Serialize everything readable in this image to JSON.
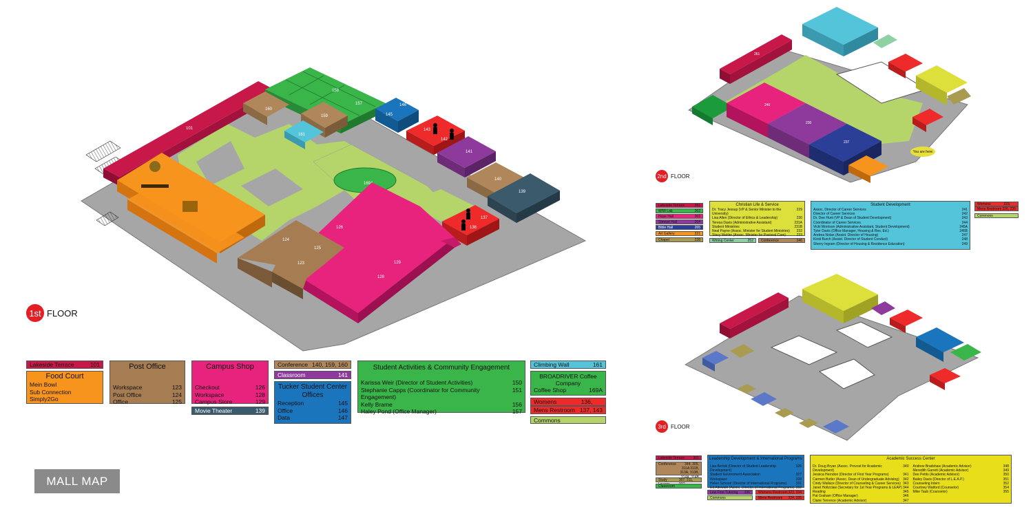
{
  "floors": {
    "first": {
      "num": "1st",
      "label": "FLOOR"
    },
    "second": {
      "num": "2nd",
      "label": "FLOOR"
    },
    "third": {
      "num": "3rd",
      "label": "FLOOR"
    }
  },
  "mall_map_label": "MALL MAP",
  "you_are_here": "You are here",
  "colors": {
    "gray_floor": "#a6a6a6",
    "green_grass": "#b5d56b",
    "crimson": "#c8184a",
    "orange": "#f7941d",
    "tan": "#b0875a",
    "magenta": "#e8237d",
    "green": "#39b54a",
    "teal_dark": "#3b5a6b",
    "purple": "#8e3a9c",
    "blue": "#1b75bc",
    "cyan": "#54c4db",
    "red": "#ee2a2a",
    "yellow": "#dddf3a",
    "navy": "#2b3f99",
    "khaki": "#a99b52",
    "periwinkle": "#5b79c8"
  },
  "rooms_first": {
    "r101": "101",
    "r160": "160",
    "r158": "158",
    "r151": "151",
    "r150": "150",
    "r157": "157",
    "r145": "145",
    "r146": "146",
    "r159": "159",
    "r161": "161",
    "r143": "143",
    "r142": "142",
    "r141": "141",
    "r140": "140",
    "r139": "139",
    "r169a": "169A",
    "r137": "137",
    "r136": "136",
    "r126": "126",
    "r124": "124",
    "r125": "125",
    "r123": "123",
    "r129": "129",
    "r128": "128"
  },
  "rooms_second": {
    "r261": "261",
    "r240": "240",
    "r230": "230",
    "r237": "237"
  },
  "legend1": {
    "lakeside": {
      "name": "Lakeside Terrace",
      "num": "101"
    },
    "foodcourt": {
      "title": "Food Court",
      "items": [
        "Mein Bowl",
        "Sub Connection",
        "Simply2Go"
      ]
    },
    "postoffice": {
      "title": "Post Office",
      "rows": [
        [
          "Workspace",
          "123"
        ],
        [
          "Post Office",
          "124"
        ],
        [
          "Office",
          "125"
        ]
      ]
    },
    "campusshop": {
      "title": "Campus Shop",
      "rows": [
        [
          "Checkout",
          "126"
        ],
        [
          "Workspace",
          "128"
        ],
        [
          "Campus Store",
          "129"
        ]
      ]
    },
    "movie": {
      "name": "Movie Theater",
      "num": "139"
    },
    "conference": {
      "name": "Conference",
      "num": "140, 159, 160"
    },
    "classroom": {
      "name": "Classroom",
      "num": "141"
    },
    "tucker": {
      "title": "Tucker Student Center Offices",
      "rows": [
        [
          "Reception",
          "145"
        ],
        [
          "Office",
          "146"
        ],
        [
          "Data",
          "147"
        ]
      ]
    },
    "sace": {
      "title": "Student Activities & Community Engagement",
      "rows": [
        [
          "Karissa Weir (Director of Student Activities)",
          "150"
        ],
        [
          "Stephanie Capps (Coordinator for Community Engagement)",
          "151"
        ],
        [
          "Kelly Brame",
          "156"
        ],
        [
          "Haley Pond (Office Manager)",
          "157"
        ]
      ]
    },
    "climbing": {
      "name": "Climbing Wall",
      "num": "161"
    },
    "coffee": {
      "title": "BROADRIVER Coffee Company",
      "name": "Coffee Shop",
      "num": "169A"
    },
    "womens": {
      "name": "Womens Restroom",
      "num": "136, 142"
    },
    "mens": {
      "name": "Mens Restroom",
      "num": "137, 143"
    },
    "commons": {
      "name": "Commons"
    }
  },
  "legend2": {
    "left": [
      [
        "Lakeside Terrace",
        "261"
      ],
      [
        "W/W Lab",
        "262"
      ],
      [
        "Hope Hall",
        "263"
      ],
      [
        "Stewart Hall",
        "264"
      ],
      [
        "Bible Hall",
        "265"
      ],
      [
        "Art Gallery",
        "221"
      ],
      [
        "Chapel",
        "228"
      ]
    ],
    "christian": {
      "title": "Christian Life & Service",
      "rows": [
        [
          "Dr. Tracy Jessup (VP & Senior Minister to the University)",
          "229"
        ],
        [
          "Lisa Allen (Director of Ethics & Leadership)",
          "230"
        ],
        [
          "Teresa Davis (Administrative Assistant)",
          "231A"
        ],
        [
          "Student Ministries",
          "231B"
        ],
        [
          "Neal Payne (Assoc. Minister for Student Ministries)",
          "232"
        ],
        [
          "Stacy Mahler (Assoc. Minister for Pastoral Care)",
          "233"
        ]
      ]
    },
    "writing": {
      "name": "Writing Center",
      "num": "252"
    },
    "conference": {
      "name": "Conference",
      "num": "246"
    },
    "studentdev": {
      "title": "Student Development",
      "rows": [
        [
          "Assoc. Director of Career Services",
          "241"
        ],
        [
          "Director of Career Services",
          "242"
        ],
        [
          "Dr. Dee Hunt (VP & Dean of Student Development)",
          "243"
        ],
        [
          "Coordinator of Career Services",
          "244"
        ],
        [
          "Vicki Morrison (Administrative Assistant, Student Development)",
          "245A"
        ],
        [
          "Tyler Davis (Office Manager, Housing & Res. Ed.)",
          "245B"
        ],
        [
          "Andrea Nolan (Assist. Director of Housing)",
          "247"
        ],
        [
          "Kirsti Burch (Assist. Director of Student Conduct)",
          "248"
        ],
        [
          "Sherry Ingram (Director of Housing & Residence Education)",
          "249"
        ]
      ]
    },
    "womens": {
      "name": "Womens Restroom",
      "num": "223, 234"
    },
    "mens": {
      "name": "Mens Restroom",
      "num": "226, 235"
    },
    "commons": {
      "name": "Commons"
    }
  },
  "legend3": {
    "lakeside": {
      "name": "Lakeside Terrace",
      "num": "301"
    },
    "conference": {
      "name": "Conference",
      "num": "344, 305, 311A 311B, 313A, 313B, 314A, 314B"
    },
    "study": {
      "name": "Study Lounge",
      "num": "307, 311, 337"
    },
    "classroom": {
      "name": "Classroom"
    },
    "leadership": {
      "title": "Leadership Development & International Programs",
      "rows": [
        [
          "Lisa Bertok (Director of Student Leadership Development)",
          "326"
        ],
        [
          "Student Government Association",
          "327"
        ],
        [
          "Workspace",
          "328"
        ],
        [
          "Helen Schoorl (Director of International Programs)",
          "331"
        ],
        [
          "Ed Adewale (Assoc. Director of International Programs)",
          "332"
        ]
      ]
    },
    "lowfree": {
      "name": "Low Free Tutoring",
      "num": "336"
    },
    "commons": {
      "name": "Commons"
    },
    "womens": {
      "name": "Womens Restroom",
      "num": "323, 334"
    },
    "mens": {
      "name": "Mens Restroom",
      "num": "324, 335"
    },
    "asc": {
      "title": "Academic Success Center",
      "left": [
        [
          "Dr. Doug Bryan (Assoc. Provost for Academic Development)",
          "340"
        ],
        [
          "Jessica Herndon (Director of First Year Programs)",
          "341"
        ],
        [
          "Carmen Butler (Assoc. Dean of Undergraduate Advising)",
          "342"
        ],
        [
          "Cindy Wallace (Director of Counseling & Career Services)",
          "343"
        ],
        [
          "Janet Holtzclaw (Secretary for 1st Year Programs & LEAP)",
          "344"
        ],
        [
          "Reading",
          "345"
        ],
        [
          "Pat Graham (Office Manager)",
          "346"
        ],
        [
          "Claire Terrence (Academic Advisor)",
          "347"
        ]
      ],
      "right": [
        [
          "Andrew Bradshaw (Academic Advisor)",
          "348"
        ],
        [
          "Meredith Garrett (Academic Advisor)",
          "349"
        ],
        [
          "Dee Pettis (Academic Advisor)",
          "350"
        ],
        [
          "Bailey Davis (Director of L.E.A.P.)",
          "351"
        ],
        [
          "Counseling Intern",
          "352"
        ],
        [
          "Courtney Watford (Counselor)",
          "354"
        ],
        [
          "Mike Taub (Counselor)",
          "355"
        ]
      ]
    }
  }
}
